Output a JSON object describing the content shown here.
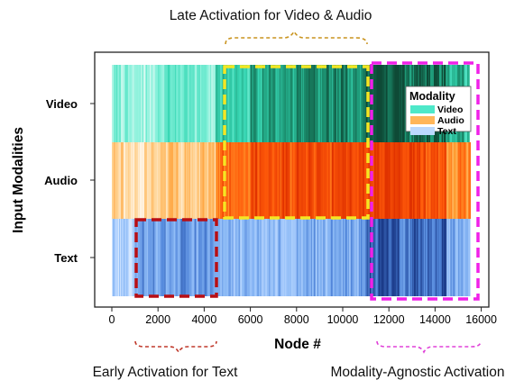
{
  "chart_data": {
    "type": "heatmap",
    "title": "",
    "xlabel": "Node #",
    "ylabel": "Input Modalities",
    "xlim": [
      0,
      15500
    ],
    "x_ticks": [
      0,
      2000,
      4000,
      6000,
      8000,
      10000,
      12000,
      14000,
      16000
    ],
    "rows": [
      "Video",
      "Audio",
      "Text"
    ],
    "grid": false,
    "legend": {
      "title": "Modality",
      "position": "top-right",
      "entries": [
        {
          "label": "Video",
          "color": "#4EE8C9"
        },
        {
          "label": "Audio",
          "color": "#FFB65A"
        },
        {
          "label": "Text",
          "color": "#BBD9FF"
        }
      ]
    },
    "series": [
      {
        "name": "Video",
        "palette": [
          "#E6FBF6",
          "#7FF0D8",
          "#37D7B4",
          "#1E9A78",
          "#0E4A36"
        ],
        "segments": [
          [
            0,
            2000,
            0.22
          ],
          [
            2000,
            4500,
            0.3
          ],
          [
            4500,
            6000,
            0.55
          ],
          [
            6000,
            8000,
            0.68
          ],
          [
            8000,
            11000,
            0.8
          ],
          [
            11000,
            12500,
            0.97
          ],
          [
            12500,
            14500,
            0.9
          ],
          [
            14500,
            15500,
            0.62
          ]
        ]
      },
      {
        "name": "Audio",
        "palette": [
          "#FFF3E2",
          "#FFD08C",
          "#FF9A2E",
          "#FF5A0A",
          "#E03200"
        ],
        "segments": [
          [
            0,
            2000,
            0.18
          ],
          [
            2000,
            4500,
            0.28
          ],
          [
            4500,
            6000,
            0.68
          ],
          [
            6000,
            8000,
            0.8
          ],
          [
            8000,
            11000,
            0.86
          ],
          [
            11000,
            12500,
            0.9
          ],
          [
            12500,
            14500,
            0.84
          ],
          [
            14500,
            15500,
            0.6
          ]
        ]
      },
      {
        "name": "Text",
        "palette": [
          "#EAF3FF",
          "#B8D6FF",
          "#8AB8F5",
          "#4F84D9",
          "#1B3A88"
        ],
        "segments": [
          [
            0,
            1000,
            0.3
          ],
          [
            1000,
            4500,
            0.62
          ],
          [
            4500,
            8000,
            0.45
          ],
          [
            8000,
            11000,
            0.55
          ],
          [
            11000,
            12500,
            0.9
          ],
          [
            12500,
            14500,
            0.82
          ],
          [
            14500,
            15500,
            0.52
          ]
        ]
      }
    ],
    "annotations": [
      {
        "text": "Late Activation for Video & Audio",
        "style": "yellow-dashed",
        "x_range": [
          4500,
          11000
        ],
        "rows": [
          "Video",
          "Audio"
        ]
      },
      {
        "text": "Early Activation for Text",
        "style": "red-dashed",
        "x_range": [
          1000,
          4500
        ],
        "rows": [
          "Text"
        ]
      },
      {
        "text": "Modality-Agnostic Activation",
        "style": "magenta-dashed",
        "x_range": [
          11000,
          15500
        ],
        "rows": [
          "Video",
          "Audio",
          "Text"
        ]
      }
    ]
  },
  "colors": {
    "yellow_box": "#F5E623",
    "red_box": "#B80E14",
    "magenta_box": "#F020E8",
    "brace_yellow": "#C9941F",
    "brace_red": "#C0392B",
    "brace_magenta": "#E040D8"
  }
}
